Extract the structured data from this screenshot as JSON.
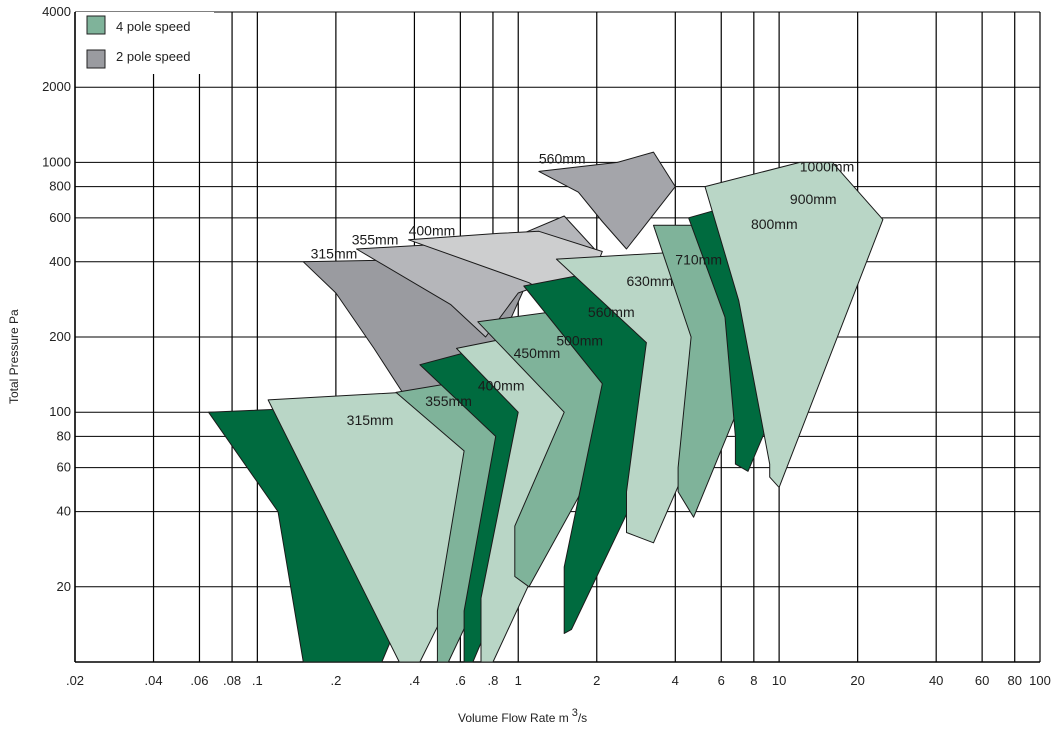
{
  "chart_data": {
    "type": "area",
    "xlabel": "Volume Flow Rate m",
    "xlabel_sup": "3",
    "xlabel_suffix": "/s",
    "ylabel": "Total Pressure Pa",
    "x_scale": "log",
    "y_scale": "log",
    "xlim": [
      0.02,
      100
    ],
    "ylim": [
      10,
      4000
    ],
    "grid": true,
    "x_ticks": [
      {
        "v": 0.02,
        "label": ".02"
      },
      {
        "v": 0.04,
        "label": ".04"
      },
      {
        "v": 0.06,
        "label": ".06"
      },
      {
        "v": 0.08,
        "label": ".08"
      },
      {
        "v": 0.1,
        "label": ".1"
      },
      {
        "v": 0.2,
        "label": ".2"
      },
      {
        "v": 0.4,
        "label": ".4"
      },
      {
        "v": 0.6,
        "label": ".6"
      },
      {
        "v": 0.8,
        "label": ".8"
      },
      {
        "v": 1,
        "label": "1"
      },
      {
        "v": 2,
        "label": "2"
      },
      {
        "v": 4,
        "label": "4"
      },
      {
        "v": 6,
        "label": "6"
      },
      {
        "v": 8,
        "label": "8"
      },
      {
        "v": 10,
        "label": "10"
      },
      {
        "v": 20,
        "label": "20"
      },
      {
        "v": 40,
        "label": "40"
      },
      {
        "v": 60,
        "label": "60"
      },
      {
        "v": 80,
        "label": "80"
      },
      {
        "v": 100,
        "label": "100"
      }
    ],
    "y_ticks": [
      {
        "v": 20,
        "label": "20"
      },
      {
        "v": 40,
        "label": "40"
      },
      {
        "v": 60,
        "label": "60"
      },
      {
        "v": 80,
        "label": "80"
      },
      {
        "v": 100,
        "label": "100"
      },
      {
        "v": 200,
        "label": "200"
      },
      {
        "v": 400,
        "label": "400"
      },
      {
        "v": 600,
        "label": "600"
      },
      {
        "v": 800,
        "label": "800"
      },
      {
        "v": 1000,
        "label": "1000"
      },
      {
        "v": 2000,
        "label": "2000"
      },
      {
        "v": 4000,
        "label": "4000"
      }
    ],
    "legend": {
      "placement": "top-left",
      "entries": [
        {
          "name": "4 pole speed",
          "color": "#7fb39a"
        },
        {
          "name": "2 pole speed",
          "color": "#9a9ba0"
        }
      ]
    },
    "series": [
      {
        "name": "1000mm",
        "speed": "4 pole speed",
        "fill": "#b9d6c6",
        "label_at": [
          12,
          920
        ],
        "points": [
          [
            5.2,
            800
          ],
          [
            12,
            1000
          ],
          [
            16,
            1000
          ],
          [
            25,
            590
          ],
          [
            10,
            50
          ],
          [
            9.2,
            55
          ],
          [
            9.2,
            62
          ],
          [
            7,
            280
          ]
        ]
      },
      {
        "name": "900mm",
        "speed": "4 pole speed",
        "fill": "#006b3f",
        "label_at": [
          11,
          680
        ],
        "points": [
          [
            4.5,
            600
          ],
          [
            10,
            760
          ],
          [
            12,
            740
          ],
          [
            17,
            420
          ],
          [
            7.6,
            58
          ],
          [
            6.8,
            62
          ],
          [
            6.8,
            80
          ],
          [
            6.2,
            240
          ]
        ]
      },
      {
        "name": "800mm",
        "speed": "4 pole speed",
        "fill": "#7fb39a",
        "label_at": [
          7.8,
          540
        ],
        "points": [
          [
            3.3,
            560
          ],
          [
            6.5,
            560
          ],
          [
            8.5,
            520
          ],
          [
            11.5,
            370
          ],
          [
            4.7,
            38
          ],
          [
            4.1,
            48
          ],
          [
            4.1,
            60
          ],
          [
            4.6,
            200
          ]
        ]
      },
      {
        "name": "710mm",
        "speed": "4 pole speed",
        "fill": "#b9d6c6",
        "label_at": [
          4,
          390
        ],
        "points": [
          [
            1.4,
            410
          ],
          [
            4.5,
            440
          ],
          [
            6,
            420
          ],
          [
            8,
            250
          ],
          [
            3.3,
            30
          ],
          [
            2.6,
            33
          ],
          [
            2.6,
            48
          ],
          [
            3.1,
            190
          ]
        ]
      },
      {
        "name": "630mm",
        "speed": "4 pole speed",
        "fill": "#006b3f",
        "label_at": [
          2.6,
          320
        ],
        "points": [
          [
            1.05,
            320
          ],
          [
            3.2,
            400
          ],
          [
            4,
            360
          ],
          [
            5.3,
            185
          ],
          [
            1.6,
            13.5
          ],
          [
            1.5,
            13
          ],
          [
            1.5,
            24
          ],
          [
            2.1,
            130
          ]
        ]
      },
      {
        "name": "560mm",
        "speed": "4 pole speed",
        "fill": "#7fb39a",
        "label_at": [
          1.85,
          240
        ],
        "points": [
          [
            0.7,
            230
          ],
          [
            2.2,
            270
          ],
          [
            2.7,
            250
          ],
          [
            3.3,
            160
          ],
          [
            1.1,
            20
          ],
          [
            0.97,
            22
          ],
          [
            0.97,
            35
          ],
          [
            1.5,
            100
          ]
        ]
      },
      {
        "name": "500mm",
        "speed": "4 pole speed",
        "fill": "#b9d6c6",
        "label_at": [
          1.4,
          185
        ],
        "points": [
          [
            0.58,
            180
          ],
          [
            1.5,
            220
          ],
          [
            1.9,
            200
          ],
          [
            2.5,
            130
          ],
          [
            0.8,
            10
          ],
          [
            0.72,
            10
          ],
          [
            0.72,
            18
          ],
          [
            1,
            100
          ]
        ]
      },
      {
        "name": "450mm",
        "speed": "4 pole speed",
        "fill": "#006b3f",
        "label_at": [
          0.96,
          165
        ],
        "points": [
          [
            0.42,
            155
          ],
          [
            1.05,
            200
          ],
          [
            1.3,
            170
          ],
          [
            1.7,
            100
          ],
          [
            0.67,
            10
          ],
          [
            0.62,
            10
          ],
          [
            0.62,
            16
          ],
          [
            0.82,
            80
          ]
        ]
      },
      {
        "name": "400mm",
        "speed": "4 pole speed",
        "fill": "#7fb39a",
        "label_at": [
          0.7,
          122
        ],
        "points": [
          [
            0.34,
            120
          ],
          [
            0.82,
            140
          ],
          [
            1.05,
            120
          ],
          [
            1.3,
            70
          ],
          [
            0.54,
            10
          ],
          [
            0.49,
            10
          ],
          [
            0.49,
            16
          ],
          [
            0.62,
            70
          ]
        ]
      },
      {
        "name": "355mm",
        "speed": "4 pole speed",
        "fill": "#b9d6c6",
        "label_at": [
          0.44,
          106
        ],
        "points": [
          [
            0.11,
            112
          ],
          [
            0.36,
            120
          ],
          [
            0.6,
            110
          ],
          [
            1.0,
            62
          ],
          [
            0.42,
            10
          ],
          [
            0.35,
            10
          ]
        ]
      },
      {
        "name": "315mm",
        "speed": "4 pole speed",
        "fill": "#006b3f",
        "label_at": [
          0.22,
          89
        ],
        "points": [
          [
            0.065,
            100
          ],
          [
            0.2,
            105
          ],
          [
            0.3,
            100
          ],
          [
            0.42,
            80
          ],
          [
            0.55,
            45
          ],
          [
            0.3,
            10
          ],
          [
            0.15,
            10
          ],
          [
            0.12,
            40
          ]
        ]
      },
      {
        "name": "560mm",
        "speed": "2 pole speed",
        "fill": "#a4a5aa",
        "label_at": [
          1.2,
          990
        ],
        "points": [
          [
            1.2,
            920
          ],
          [
            2.4,
            1000
          ],
          [
            3.3,
            1100
          ],
          [
            4,
            800
          ],
          [
            2.6,
            450
          ],
          [
            2.1,
            580
          ],
          [
            1.7,
            760
          ]
        ]
      },
      {
        "name": "400mm",
        "speed": "2 pole speed",
        "fill": "#cdcecf",
        "label_at": [
          0.38,
          510
        ],
        "points": [
          [
            0.38,
            490
          ],
          [
            0.85,
            520
          ],
          [
            1.2,
            530
          ],
          [
            2.1,
            440
          ],
          [
            1.7,
            250
          ],
          [
            1.1,
            330
          ]
        ]
      },
      {
        "name": "355mm",
        "speed": "2 pole speed",
        "fill": "#b5b6ba",
        "label_at": [
          0.23,
          470
        ],
        "points": [
          [
            0.24,
            450
          ],
          [
            0.7,
            480
          ],
          [
            1,
            510
          ],
          [
            1.5,
            610
          ],
          [
            2,
            440
          ],
          [
            1.4,
            340
          ],
          [
            1.0,
            300
          ],
          [
            0.75,
            200
          ],
          [
            0.55,
            270
          ]
        ]
      },
      {
        "name": "315mm",
        "speed": "2 pole speed",
        "fill": "#9a9ba0",
        "label_at": [
          0.16,
          412
        ],
        "points": [
          [
            0.15,
            400
          ],
          [
            0.5,
            410
          ],
          [
            0.75,
            430
          ],
          [
            1.05,
            310
          ],
          [
            0.7,
            120
          ],
          [
            0.36,
            120
          ],
          [
            0.28,
            180
          ],
          [
            0.2,
            300
          ]
        ]
      }
    ]
  }
}
